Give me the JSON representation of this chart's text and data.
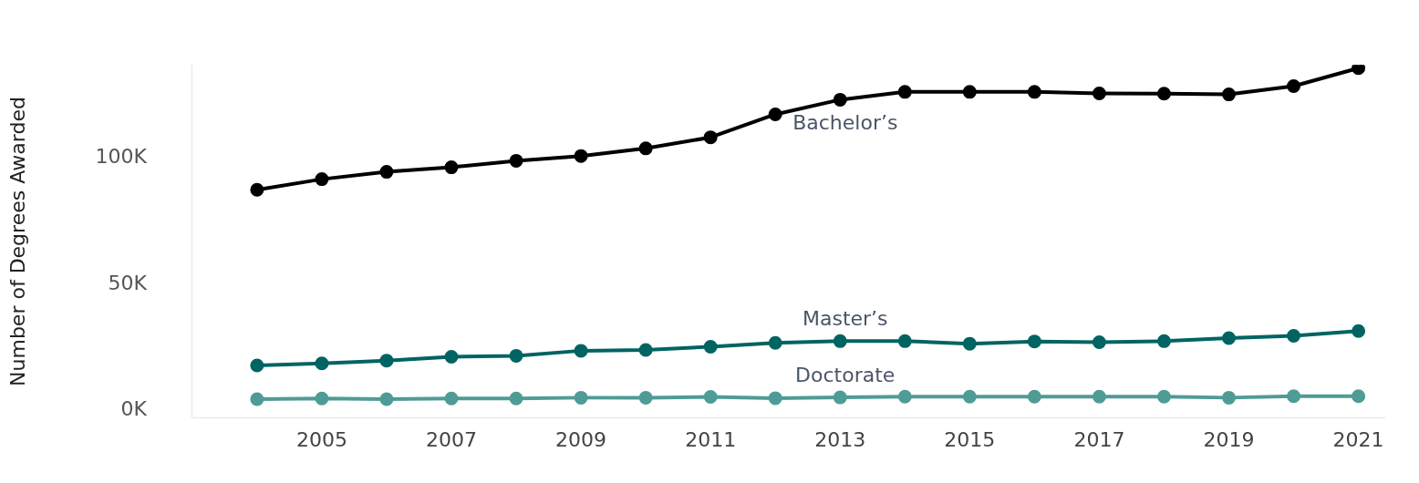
{
  "chart_data": {
    "type": "line",
    "ylabel": "Number of Degrees Awarded",
    "x": [
      2004,
      2005,
      2006,
      2007,
      2008,
      2009,
      2010,
      2011,
      2012,
      2013,
      2014,
      2015,
      2016,
      2017,
      2018,
      2019,
      2020,
      2021
    ],
    "series": [
      {
        "name": "Bachelor’s",
        "color": "#000000",
        "values": [
          87500,
          91700,
          94600,
          96400,
          99000,
          100900,
          103900,
          108300,
          117400,
          123200,
          126300,
          126300,
          126300,
          125700,
          125600,
          125300,
          128600,
          135700
        ]
      },
      {
        "name": "Master’s",
        "color": "#006463",
        "values": [
          17900,
          18700,
          19800,
          21300,
          21700,
          23700,
          24000,
          25300,
          26800,
          27500,
          27500,
          26500,
          27400,
          27100,
          27500,
          28700,
          29600,
          31500
        ]
      },
      {
        "name": "Doctorate",
        "color": "#4e9c95",
        "values": [
          4500,
          4800,
          4500,
          4800,
          4800,
          5100,
          5100,
          5400,
          4900,
          5200,
          5500,
          5500,
          5500,
          5500,
          5500,
          5100,
          5700,
          5700
        ]
      }
    ],
    "xlim": [
      2003,
      2021.4
    ],
    "xticks": [
      2005,
      2007,
      2009,
      2011,
      2013,
      2015,
      2017,
      2019,
      2021
    ],
    "ylim": [
      -3000,
      137000
    ],
    "yticks": [
      {
        "value": 0,
        "label": "0K"
      },
      {
        "value": 50000,
        "label": "50K"
      },
      {
        "value": 100000,
        "label": "100K"
      }
    ],
    "grid": false,
    "legend": false,
    "marker": "circle",
    "line_style": "solid"
  }
}
